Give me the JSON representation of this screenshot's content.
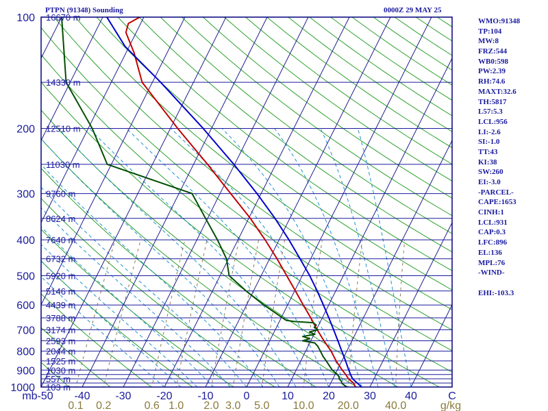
{
  "header": {
    "station": "PTPN (91348) Sounding",
    "datetime": "0000Z 29 MAY 25"
  },
  "indices": [
    "WMO:91348",
    "TP:104",
    "MW:8",
    "FRZ:544",
    "WB0:598",
    "PW:2.39",
    "RH:74.6",
    "MAXT:32.6",
    "TH:5817",
    "L57:5.3",
    "LCL:956",
    "LI:-2.6",
    "SI:-1.0",
    "TT:43",
    "KI:38",
    "SW:260",
    "EI:-3.0",
    "-PARCEL-",
    "CAPE:1653",
    "CINH:1",
    "LCL:931",
    "CAP:0.3",
    "LFC:896",
    "EL:136",
    "MPL:76",
    "-WIND-",
    "",
    "EHI:-103.3"
  ],
  "colors": {
    "frame": "#00007f",
    "isobar": "#1a1a9e",
    "isotherm": "#1f1f8f",
    "dry_adiabat": "#2ca02c",
    "moist_adiabat": "#1e90d0",
    "mixing_ratio": "#8a7a55",
    "temperature": "#c00000",
    "dewpoint": "#004d00",
    "parcel": "#0000cc",
    "label_text": "#1a1a9e",
    "mixing_label": "#8a7a3a"
  },
  "chart_data": {
    "type": "line",
    "subtype": "skew-T log-P sounding",
    "y_axis": {
      "quantity": "pressure",
      "unit": "mb",
      "scale": "log",
      "range": [
        1000,
        100
      ],
      "ticks": [
        100,
        200,
        300,
        400,
        500,
        600,
        700,
        800,
        900,
        1000
      ]
    },
    "x_axis": {
      "quantity": "temperature",
      "unit": "C",
      "range": [
        -50,
        50
      ],
      "ticks": [
        -50,
        -40,
        -30,
        -20,
        -10,
        0,
        10,
        20,
        30,
        40
      ],
      "tick_labels": [
        "mb-50",
        "-40",
        "-30",
        "-20",
        "-10",
        "0",
        "10",
        "20",
        "30",
        "40",
        "C"
      ]
    },
    "isobars_mb": [
      100,
      150,
      200,
      250,
      300,
      350,
      400,
      450,
      500,
      550,
      600,
      650,
      700,
      750,
      800,
      850,
      900,
      925,
      950,
      975,
      1000
    ],
    "height_labels": [
      {
        "p": 100,
        "text": "16670 m"
      },
      {
        "p": 150,
        "text": "14330 m"
      },
      {
        "p": 200,
        "text": "12510 m"
      },
      {
        "p": 250,
        "text": "11030 m"
      },
      {
        "p": 300,
        "text": "9760 m"
      },
      {
        "p": 350,
        "text": "8624 m"
      },
      {
        "p": 400,
        "text": "7640 m"
      },
      {
        "p": 450,
        "text": "6732 m"
      },
      {
        "p": 500,
        "text": "5920 m"
      },
      {
        "p": 550,
        "text": "5146 m"
      },
      {
        "p": 600,
        "text": "4439 m"
      },
      {
        "p": 650,
        "text": "3788 m"
      },
      {
        "p": 700,
        "text": "3174 m"
      },
      {
        "p": 750,
        "text": "2593 m"
      },
      {
        "p": 800,
        "text": "2044 m"
      },
      {
        "p": 850,
        "text": "1525 m"
      },
      {
        "p": 900,
        "text": "1030 m"
      },
      {
        "p": 950,
        "text": "557 m"
      },
      {
        "p": 1000,
        "text": "103 m"
      }
    ],
    "mixing_ratio_labels": [
      "0.1",
      "0.2",
      "0.6",
      "1.0",
      "2.0",
      "3.0",
      "5.0",
      "10.0",
      "20.0",
      "40.0",
      "g/kg"
    ],
    "mixing_ratio_values": [
      0.1,
      0.2,
      0.6,
      1.0,
      2.0,
      3.0,
      5.0,
      10.0,
      20.0,
      40.0
    ],
    "series": [
      {
        "key": "temperature",
        "points": [
          [
            1000,
            26.5
          ],
          [
            975,
            25.5
          ],
          [
            950,
            23.8
          ],
          [
            925,
            22.6
          ],
          [
            900,
            21.2
          ],
          [
            850,
            18.6
          ],
          [
            800,
            16.2
          ],
          [
            750,
            13.2
          ],
          [
            700,
            10.2
          ],
          [
            650,
            7.2
          ],
          [
            600,
            3.8
          ],
          [
            550,
            0.2
          ],
          [
            500,
            -3.8
          ],
          [
            450,
            -8.2
          ],
          [
            400,
            -13.4
          ],
          [
            350,
            -19.6
          ],
          [
            300,
            -27.4
          ],
          [
            250,
            -36.6
          ],
          [
            200,
            -48.2
          ],
          [
            150,
            -62.5
          ],
          [
            125,
            -68
          ],
          [
            110,
            -72.5
          ],
          [
            104,
            -73
          ],
          [
            100,
            -71
          ]
        ]
      },
      {
        "key": "dewpoint",
        "points": [
          [
            1000,
            24.5
          ],
          [
            990,
            23.6
          ],
          [
            975,
            22.6
          ],
          [
            965,
            22.4
          ],
          [
            950,
            21.5
          ],
          [
            940,
            21.3
          ],
          [
            925,
            20.6
          ],
          [
            900,
            18.8
          ],
          [
            875,
            17.5
          ],
          [
            850,
            16.2
          ],
          [
            825,
            14.8
          ],
          [
            800,
            13.6
          ],
          [
            775,
            12.3
          ],
          [
            760,
            11.2
          ],
          [
            750,
            8.0
          ],
          [
            740,
            9.5
          ],
          [
            730,
            7.5
          ],
          [
            720,
            10.2
          ],
          [
            710,
            8.6
          ],
          [
            700,
            10.4
          ],
          [
            690,
            9.2
          ],
          [
            680,
            9.4
          ],
          [
            670,
            8.4
          ],
          [
            665,
            3.5
          ],
          [
            660,
            1.5
          ],
          [
            600,
            -5.8
          ],
          [
            550,
            -11.8
          ],
          [
            500,
            -17.8
          ],
          [
            450,
            -20.5
          ],
          [
            400,
            -25
          ],
          [
            350,
            -30.5
          ],
          [
            300,
            -36.8
          ],
          [
            250,
            -61
          ],
          [
            200,
            -69
          ],
          [
            150,
            -81
          ],
          [
            100,
            -90
          ]
        ]
      },
      {
        "key": "parcel",
        "points": [
          [
            1000,
            28.0
          ],
          [
            975,
            26.4
          ],
          [
            950,
            24.8
          ],
          [
            931,
            24.0
          ],
          [
            900,
            22.8
          ],
          [
            850,
            20.9
          ],
          [
            800,
            18.8
          ],
          [
            750,
            16.6
          ],
          [
            700,
            14.2
          ],
          [
            650,
            11.6
          ],
          [
            600,
            8.7
          ],
          [
            550,
            5.5
          ],
          [
            500,
            1.8
          ],
          [
            450,
            -2.6
          ],
          [
            400,
            -7.6
          ],
          [
            350,
            -13.6
          ],
          [
            300,
            -21.0
          ],
          [
            250,
            -30.2
          ],
          [
            200,
            -42.0
          ],
          [
            150,
            -58.0
          ],
          [
            120,
            -71.0
          ],
          [
            100,
            -79.0
          ]
        ]
      }
    ],
    "grid": true
  }
}
